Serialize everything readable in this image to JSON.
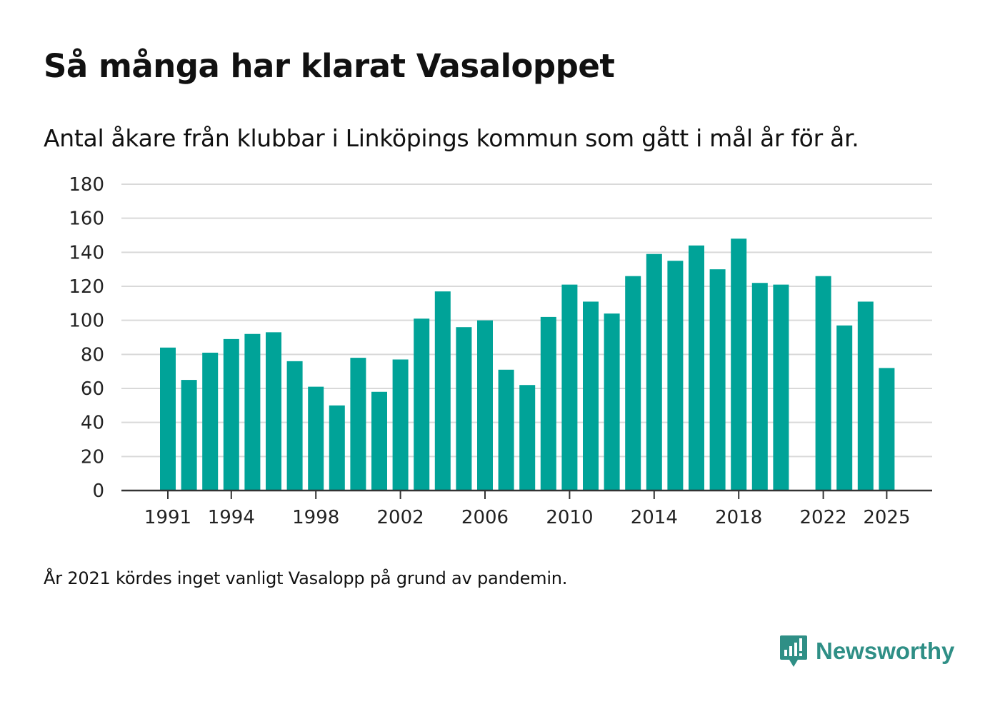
{
  "chart_data": {
    "type": "bar",
    "title": "Så många har klarat Vasaloppet",
    "subtitle": "Antal åkare från klubbar i Linköpings kommun som gått i mål år för år.",
    "xlabel": "",
    "ylabel": "",
    "ylim": [
      0,
      180
    ],
    "yticks": [
      0,
      20,
      40,
      60,
      80,
      100,
      120,
      140,
      160,
      180
    ],
    "x_tick_labels": [
      "1991",
      "1994",
      "1998",
      "2002",
      "2006",
      "2010",
      "2014",
      "2018",
      "2022",
      "2025"
    ],
    "bar_color": "#00a398",
    "grid": true,
    "categories": [
      1991,
      1992,
      1993,
      1994,
      1995,
      1996,
      1997,
      1998,
      1999,
      2000,
      2001,
      2002,
      2003,
      2004,
      2005,
      2006,
      2007,
      2008,
      2009,
      2010,
      2011,
      2012,
      2013,
      2014,
      2015,
      2016,
      2017,
      2018,
      2019,
      2020,
      2021,
      2022,
      2023,
      2024,
      2025
    ],
    "values": [
      84,
      65,
      81,
      89,
      92,
      93,
      76,
      61,
      50,
      78,
      58,
      77,
      101,
      117,
      96,
      100,
      71,
      62,
      102,
      121,
      111,
      104,
      126,
      139,
      135,
      144,
      130,
      148,
      122,
      121,
      null,
      126,
      97,
      111,
      72
    ],
    "note": "År 2021 kördes inget vanligt Vasalopp på grund av pandemin."
  },
  "brand": {
    "name": "Newsworthy",
    "color": "#2f8f86"
  }
}
